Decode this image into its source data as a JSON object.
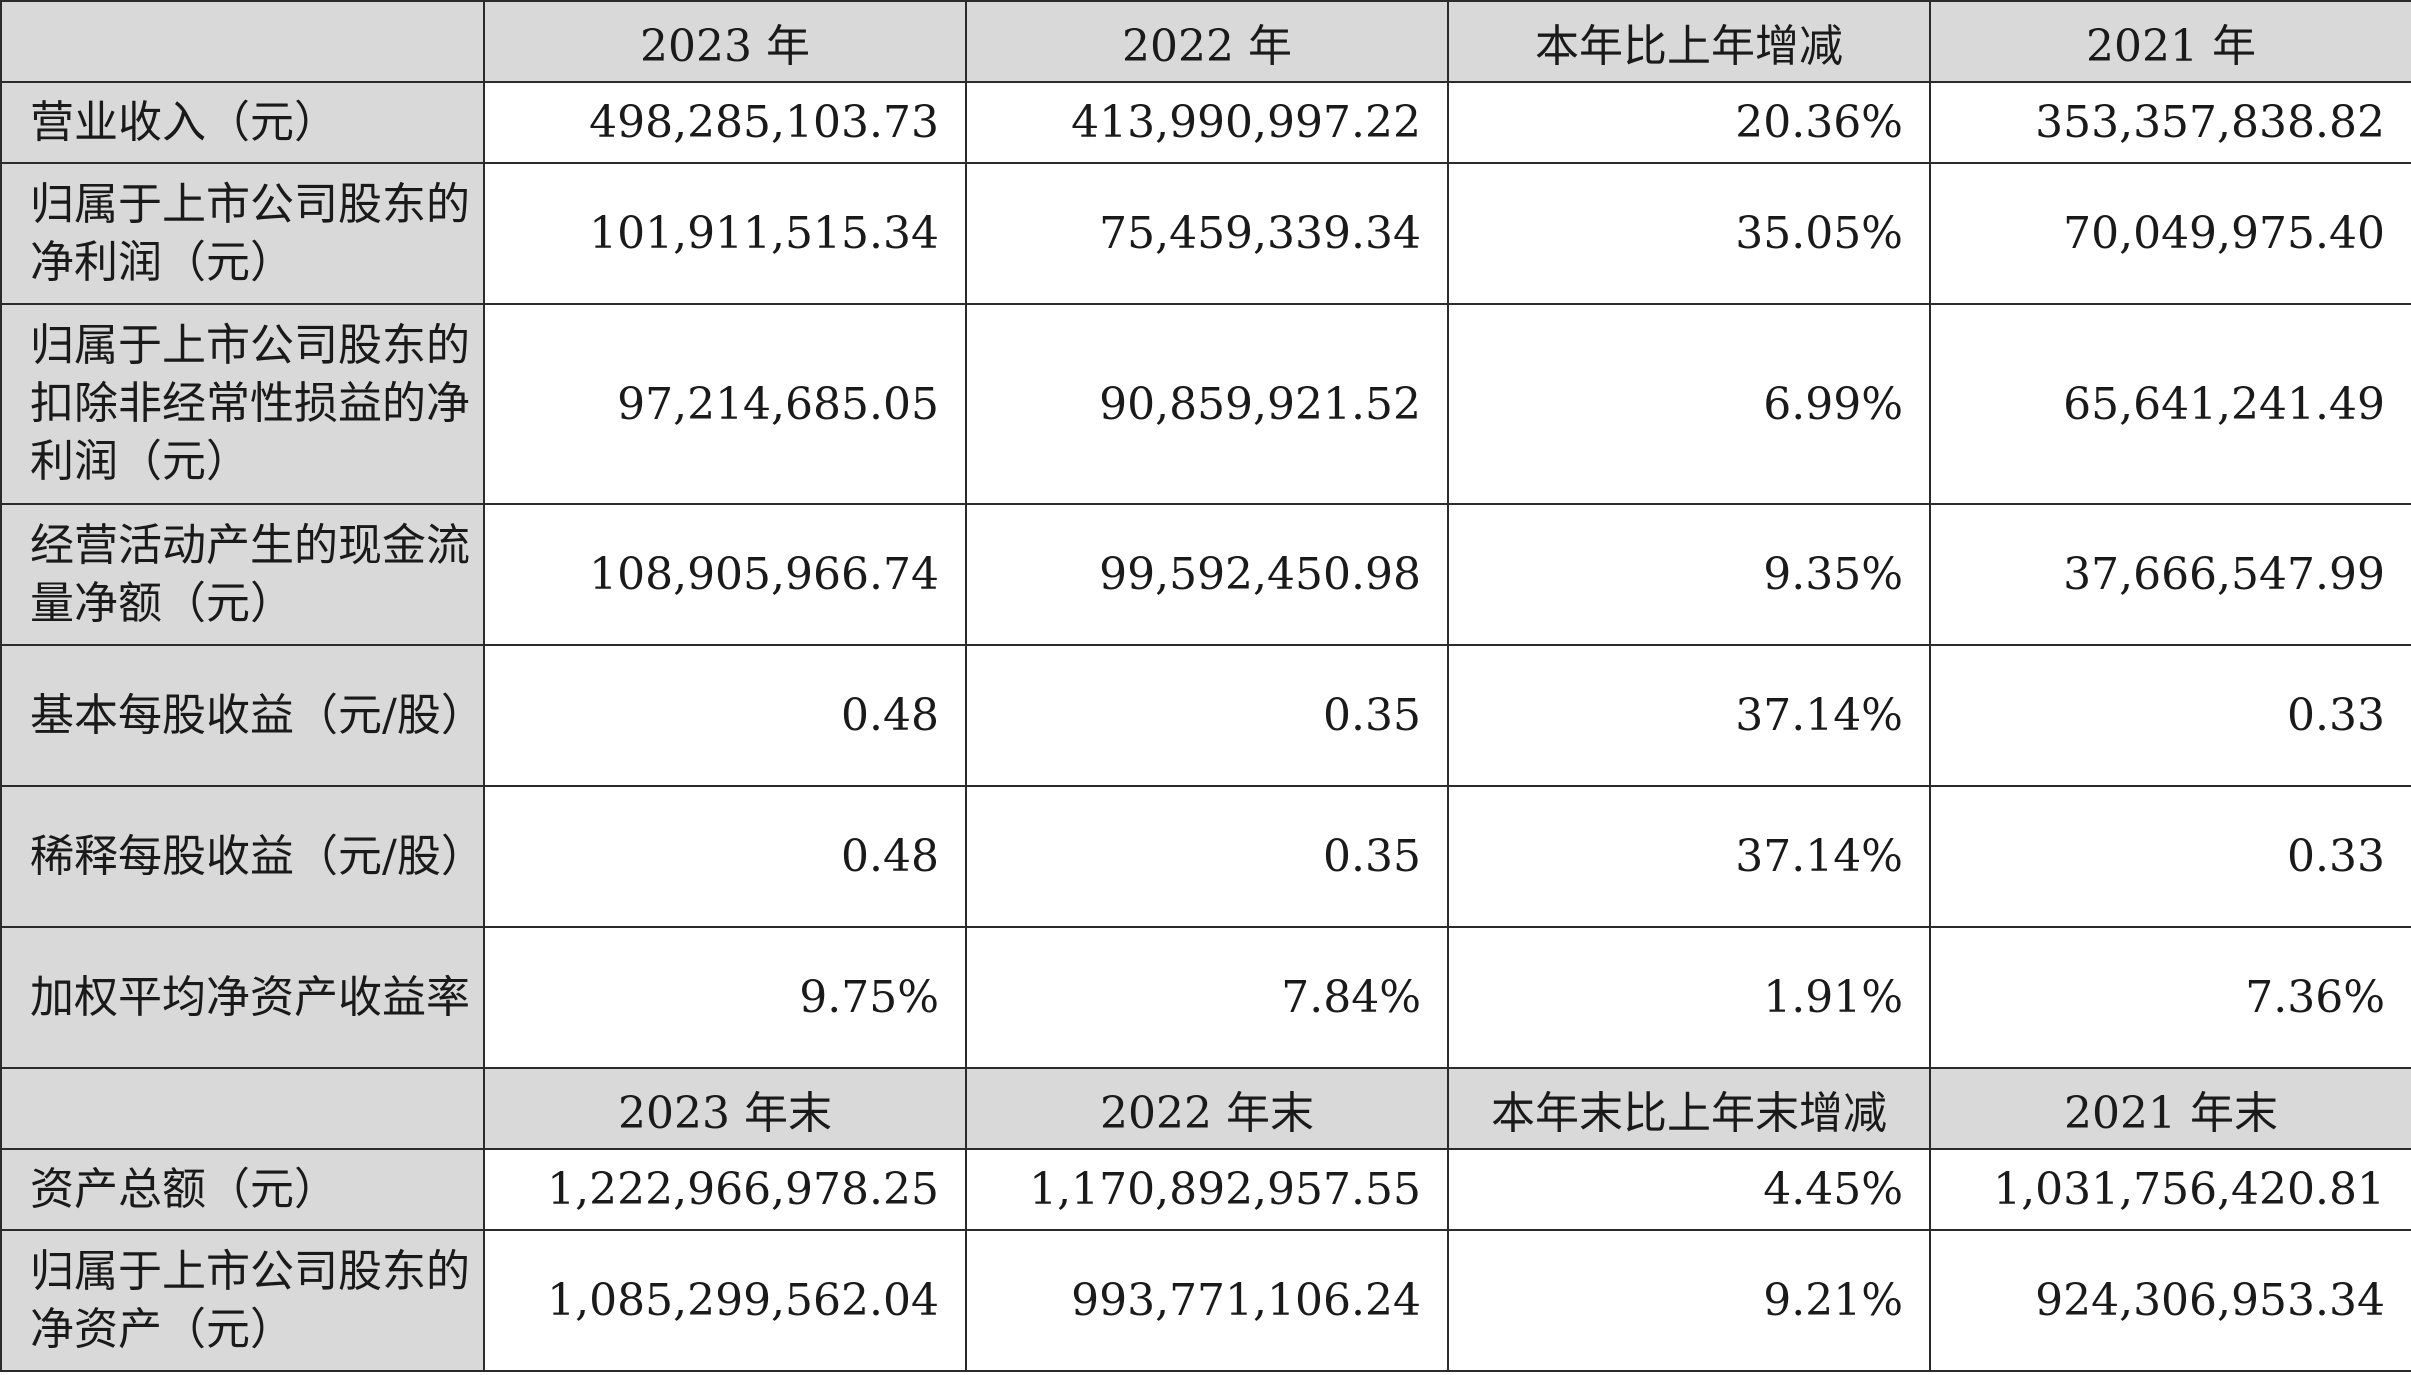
{
  "table": {
    "header1": [
      "",
      "2023 年",
      "2022 年",
      "本年比上年增减",
      "2021 年"
    ],
    "rows1": [
      {
        "label": "营业收入（元）",
        "values": [
          "498,285,103.73",
          "413,990,997.22",
          "20.36%",
          "353,357,838.82"
        ]
      },
      {
        "label": "归属于上市公司股东的净利润（元）",
        "values": [
          "101,911,515.34",
          "75,459,339.34",
          "35.05%",
          "70,049,975.40"
        ]
      },
      {
        "label": "归属于上市公司股东的扣除非经常性损益的净利润（元）",
        "values": [
          "97,214,685.05",
          "90,859,921.52",
          "6.99%",
          "65,641,241.49"
        ]
      },
      {
        "label": "经营活动产生的现金流量净额（元）",
        "values": [
          "108,905,966.74",
          "99,592,450.98",
          "9.35%",
          "37,666,547.99"
        ]
      },
      {
        "label": "基本每股收益（元/股）",
        "values": [
          "0.48",
          "0.35",
          "37.14%",
          "0.33"
        ]
      },
      {
        "label": "稀释每股收益（元/股）",
        "values": [
          "0.48",
          "0.35",
          "37.14%",
          "0.33"
        ]
      },
      {
        "label": "加权平均净资产收益率",
        "values": [
          "9.75%",
          "7.84%",
          "1.91%",
          "7.36%"
        ]
      }
    ],
    "header2": [
      "",
      "2023 年末",
      "2022 年末",
      "本年末比上年末增减",
      "2021 年末"
    ],
    "rows2": [
      {
        "label": "资产总额（元）",
        "values": [
          "1,222,966,978.25",
          "1,170,892,957.55",
          "4.45%",
          "1,031,756,420.81"
        ]
      },
      {
        "label": "归属于上市公司股东的净资产（元）",
        "values": [
          "1,085,299,562.04",
          "993,771,106.24",
          "9.21%",
          "924,306,953.34"
        ]
      }
    ]
  }
}
